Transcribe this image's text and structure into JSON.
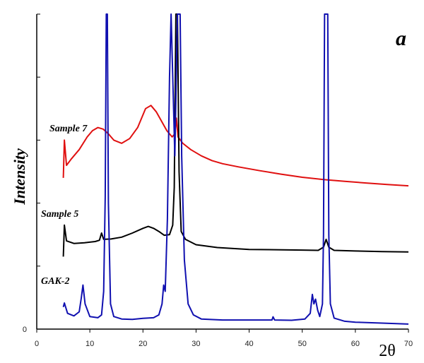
{
  "chart_data": {
    "type": "line",
    "panel_label": "a",
    "xlabel": "2θ",
    "ylabel": "Intensity",
    "xlim": [
      0,
      70
    ],
    "ylim": [
      0,
      100
    ],
    "xticks": [
      "0",
      "10",
      "20",
      "30",
      "40",
      "50",
      "60",
      "70"
    ],
    "yticks": [
      "0"
    ],
    "series": [
      {
        "name": "Sample 7",
        "color": "#e01010",
        "points": [
          [
            5,
            48
          ],
          [
            5.2,
            60
          ],
          [
            5.6,
            52
          ],
          [
            6.5,
            54
          ],
          [
            8,
            57
          ],
          [
            9.5,
            61
          ],
          [
            10.5,
            63
          ],
          [
            11.5,
            64
          ],
          [
            12.5,
            63.5
          ],
          [
            13.5,
            62
          ],
          [
            14.5,
            60
          ],
          [
            16,
            59
          ],
          [
            17.5,
            60.5
          ],
          [
            19,
            64
          ],
          [
            20.5,
            70
          ],
          [
            21.5,
            71
          ],
          [
            22.5,
            69
          ],
          [
            23.5,
            66
          ],
          [
            24.5,
            63
          ],
          [
            25.5,
            61
          ],
          [
            26,
            62
          ],
          [
            26.3,
            67
          ],
          [
            26.6,
            61
          ],
          [
            27.5,
            59
          ],
          [
            29,
            57
          ],
          [
            31,
            55
          ],
          [
            33,
            53.5
          ],
          [
            35,
            52.5
          ],
          [
            38,
            51.5
          ],
          [
            42,
            50.3
          ],
          [
            46,
            49.2
          ],
          [
            50,
            48.2
          ],
          [
            54,
            47.5
          ],
          [
            58,
            46.9
          ],
          [
            62,
            46.4
          ],
          [
            66,
            45.9
          ],
          [
            70,
            45.5
          ]
        ]
      },
      {
        "name": "Sample 5",
        "color": "#000000",
        "points": [
          [
            5,
            23
          ],
          [
            5.2,
            33
          ],
          [
            5.6,
            28
          ],
          [
            7,
            27.2
          ],
          [
            9,
            27.4
          ],
          [
            11,
            27.8
          ],
          [
            11.8,
            28.2
          ],
          [
            12.2,
            30.5
          ],
          [
            12.6,
            28.5
          ],
          [
            14,
            28.6
          ],
          [
            16,
            29.2
          ],
          [
            18,
            30.5
          ],
          [
            20,
            32
          ],
          [
            21,
            32.6
          ],
          [
            22,
            32
          ],
          [
            23,
            31
          ],
          [
            24,
            29.8
          ],
          [
            25,
            30
          ],
          [
            25.6,
            33
          ],
          [
            25.9,
            45
          ],
          [
            26.2,
            100
          ],
          [
            26.5,
            100
          ],
          [
            26.8,
            50
          ],
          [
            27.2,
            31
          ],
          [
            28,
            28.5
          ],
          [
            30,
            26.8
          ],
          [
            34,
            25.9
          ],
          [
            40,
            25.3
          ],
          [
            45,
            25.2
          ],
          [
            50,
            25.1
          ],
          [
            53,
            25
          ],
          [
            54,
            26
          ],
          [
            54.5,
            28.5
          ],
          [
            55,
            26
          ],
          [
            56,
            25
          ],
          [
            60,
            24.8
          ],
          [
            65,
            24.6
          ],
          [
            70,
            24.5
          ]
        ]
      },
      {
        "name": "GAK-2",
        "color": "#1010b0",
        "points": [
          [
            5,
            7
          ],
          [
            5.2,
            8.3
          ],
          [
            5.8,
            5
          ],
          [
            7,
            4.2
          ],
          [
            8,
            5.5
          ],
          [
            8.4,
            10
          ],
          [
            8.7,
            14
          ],
          [
            9.1,
            8
          ],
          [
            10,
            4
          ],
          [
            11.5,
            3.6
          ],
          [
            12.2,
            4.5
          ],
          [
            12.6,
            12
          ],
          [
            12.9,
            42
          ],
          [
            13.1,
            100
          ],
          [
            13.3,
            100
          ],
          [
            13.5,
            40
          ],
          [
            13.9,
            8
          ],
          [
            14.5,
            4
          ],
          [
            16,
            3.2
          ],
          [
            18,
            3.1
          ],
          [
            20,
            3.4
          ],
          [
            22,
            3.6
          ],
          [
            23,
            4.5
          ],
          [
            23.6,
            8
          ],
          [
            23.9,
            14
          ],
          [
            24.2,
            12
          ],
          [
            24.6,
            35
          ],
          [
            25,
            80
          ],
          [
            25.3,
            100
          ],
          [
            26,
            55
          ],
          [
            26.5,
            100
          ],
          [
            27,
            100
          ],
          [
            27.3,
            55
          ],
          [
            27.8,
            22
          ],
          [
            28.5,
            8
          ],
          [
            29.5,
            4.5
          ],
          [
            31,
            3.2
          ],
          [
            35,
            2.9
          ],
          [
            40,
            2.9
          ],
          [
            44.3,
            2.9
          ],
          [
            44.5,
            3.9
          ],
          [
            44.8,
            2.9
          ],
          [
            48,
            2.8
          ],
          [
            50.5,
            3.2
          ],
          [
            51.5,
            5
          ],
          [
            51.9,
            11
          ],
          [
            52.2,
            8
          ],
          [
            52.5,
            9.5
          ],
          [
            52.9,
            6
          ],
          [
            53.3,
            4
          ],
          [
            53.8,
            8
          ],
          [
            54,
            30
          ],
          [
            54.2,
            100
          ],
          [
            54.8,
            100
          ],
          [
            55,
            30
          ],
          [
            55.3,
            8
          ],
          [
            56,
            3.5
          ],
          [
            58,
            2.5
          ],
          [
            60,
            2.2
          ],
          [
            65,
            1.9
          ],
          [
            70,
            1.6
          ]
        ]
      }
    ]
  }
}
